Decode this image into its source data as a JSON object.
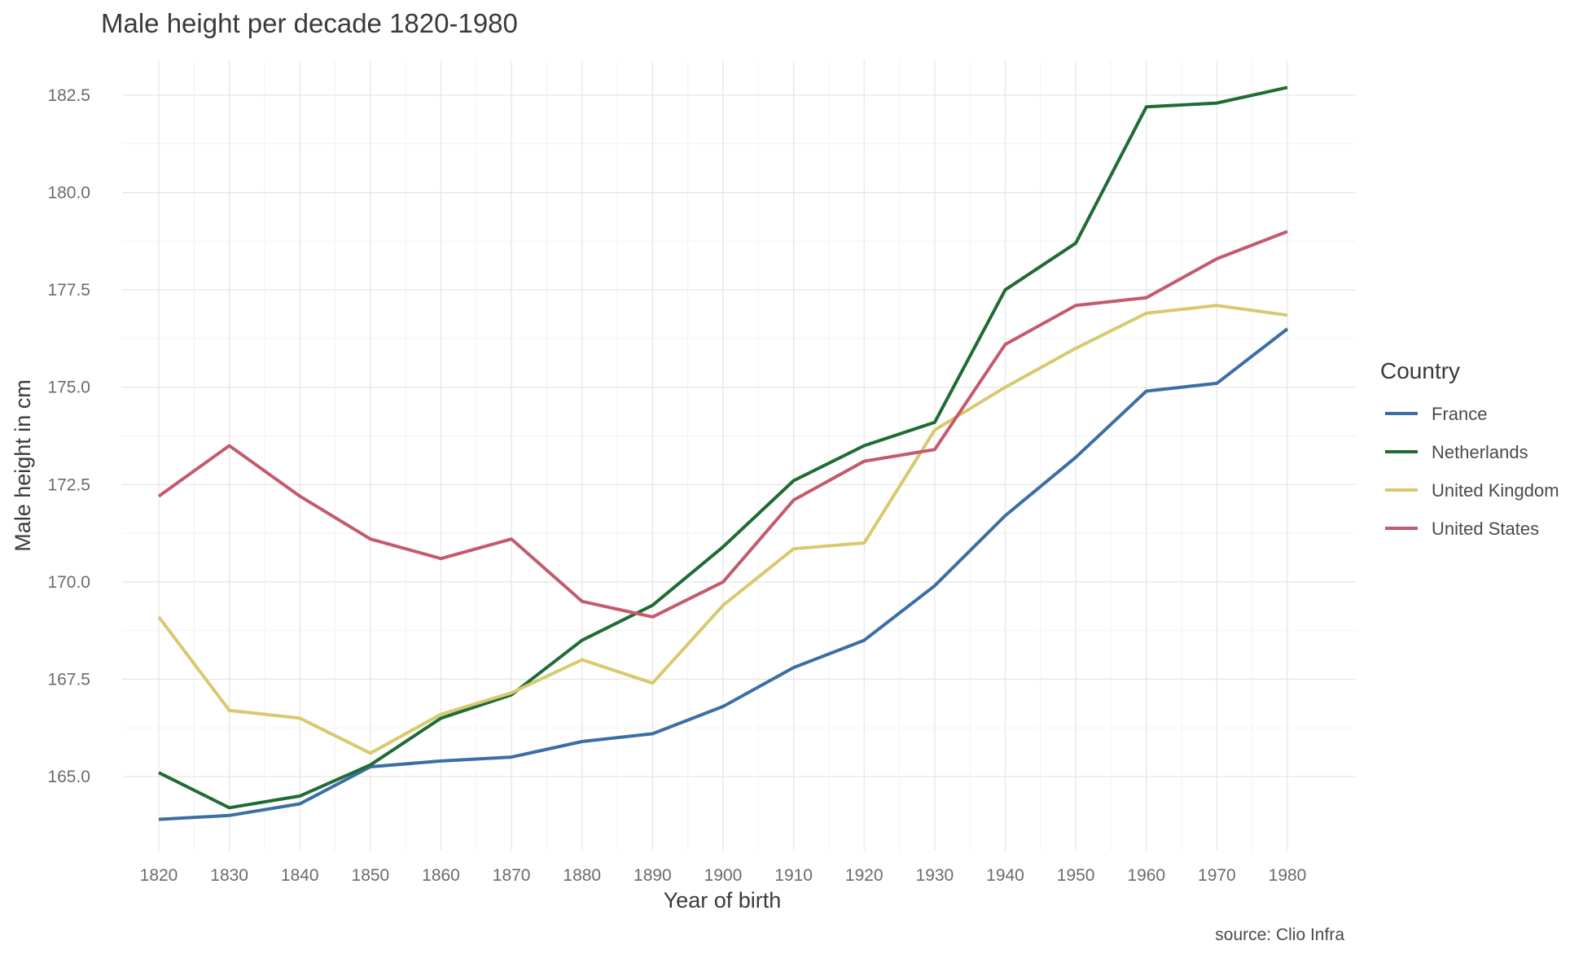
{
  "chart_data": {
    "type": "line",
    "title": "Male height per decade 1820-1980",
    "xlabel": "Year of birth",
    "ylabel": "Male height in cm",
    "caption": "source: Clio Infra",
    "x": [
      1820,
      1830,
      1840,
      1850,
      1860,
      1870,
      1880,
      1890,
      1900,
      1910,
      1920,
      1930,
      1940,
      1950,
      1960,
      1970,
      1980
    ],
    "xlim": [
      1820,
      1980
    ],
    "ylim": [
      163.5,
      182.7
    ],
    "y_ticks": [
      "165.0",
      "167.5",
      "170.0",
      "172.5",
      "175.0",
      "177.5",
      "180.0",
      "182.5"
    ],
    "grid": true,
    "legend": {
      "title": "Country",
      "position": "right"
    },
    "series": [
      {
        "name": "France",
        "color": "#3b6ea5",
        "values": [
          163.9,
          164.0,
          164.3,
          165.25,
          165.4,
          165.5,
          165.9,
          166.1,
          166.8,
          167.8,
          168.5,
          169.9,
          171.7,
          173.2,
          174.9,
          175.1,
          176.5
        ]
      },
      {
        "name": "Netherlands",
        "color": "#1f6b35",
        "values": [
          165.1,
          164.2,
          164.5,
          165.3,
          166.5,
          167.1,
          168.5,
          169.4,
          170.9,
          172.6,
          173.5,
          174.1,
          177.5,
          178.7,
          182.2,
          182.3,
          182.7
        ]
      },
      {
        "name": "United Kingdom",
        "color": "#d8c96e",
        "values": [
          169.1,
          166.7,
          166.5,
          165.6,
          166.6,
          167.15,
          168.0,
          167.4,
          169.4,
          170.85,
          171.0,
          173.9,
          175.0,
          176.0,
          176.9,
          177.1,
          176.85
        ]
      },
      {
        "name": "United States",
        "color": "#c35a6d",
        "values": [
          172.2,
          173.5,
          172.2,
          171.1,
          170.6,
          171.1,
          169.5,
          169.1,
          170.0,
          172.1,
          173.1,
          173.4,
          176.1,
          177.1,
          177.3,
          178.3,
          179.0
        ]
      }
    ]
  }
}
